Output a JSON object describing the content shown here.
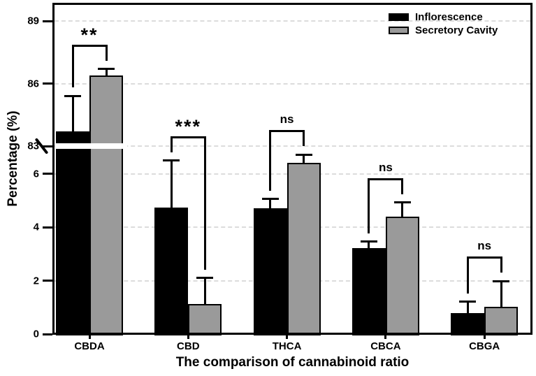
{
  "figure": {
    "x_axis_title": "The comparison of cannabinoid ratio",
    "y_axis_title": "Percentage (%)"
  },
  "chart_data": {
    "type": "bar",
    "title": "",
    "xlabel": "The comparison of cannabinoid ratio",
    "ylabel": "Percentage (%)",
    "categories": [
      "CBDA",
      "CBD",
      "THCA",
      "CBCA",
      "CBGA"
    ],
    "series": [
      {
        "name": "Inflorescence",
        "color": "#000000",
        "values": [
          83.7,
          4.75,
          4.72,
          3.22,
          0.79
        ],
        "errors": [
          1.7,
          1.75,
          0.34,
          0.24,
          0.42
        ]
      },
      {
        "name": "Secretory Cavity",
        "color": "#9a9a9a",
        "values": [
          86.4,
          1.13,
          6.42,
          4.4,
          1.02
        ],
        "errors": [
          0.3,
          0.97,
          0.31,
          0.53,
          0.97
        ]
      }
    ],
    "significance": [
      {
        "category": "CBDA",
        "label": "**"
      },
      {
        "category": "CBD",
        "label": "***"
      },
      {
        "category": "THCA",
        "label": "ns"
      },
      {
        "category": "CBCA",
        "label": "ns"
      },
      {
        "category": "CBGA",
        "label": "ns"
      }
    ],
    "axis_break": {
      "lower_ticks": [
        0,
        2,
        4,
        6
      ],
      "upper_ticks": [
        83,
        86,
        89
      ],
      "lower_range": [
        0,
        7
      ],
      "upper_range": [
        83,
        89.9
      ]
    },
    "grid": "horizontal-dashed",
    "legend_position": "top-right",
    "bar_outline_color": "#000000",
    "gridline_color": "#dcdcdc"
  }
}
